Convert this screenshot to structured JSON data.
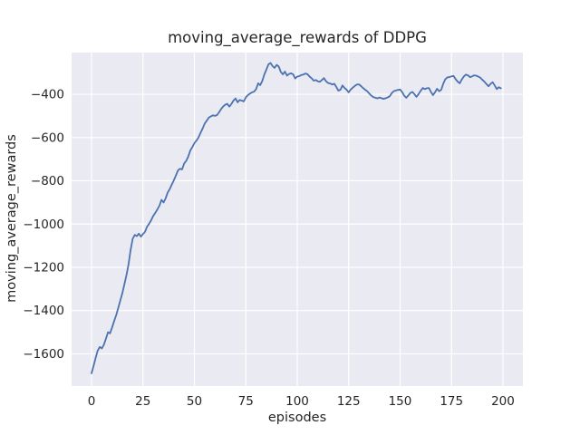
{
  "chart_data": {
    "type": "line",
    "title": "moving_average_rewards of DDPG",
    "xlabel": "episodes",
    "ylabel": "moving_average_rewards",
    "x_ticks": [
      0,
      25,
      50,
      75,
      100,
      125,
      150,
      175,
      200
    ],
    "y_ticks": [
      -400,
      -600,
      -800,
      -1000,
      -1200,
      -1400,
      -1600
    ],
    "xlim": [
      -9.7,
      209.7
    ],
    "ylim": [
      -1749,
      -207
    ],
    "grid": true,
    "legend": false,
    "style": "seaborn-darkgrid",
    "colors": {
      "line": "#4c72b0",
      "plot_background": "#eaeaf2",
      "grid": "#ffffff",
      "text": "#262626",
      "figure_background": "#ffffff"
    },
    "series": [
      {
        "name": "moving_average_rewards",
        "points": [
          [
            0,
            -1690
          ],
          [
            1,
            -1655
          ],
          [
            2,
            -1618
          ],
          [
            3,
            -1585
          ],
          [
            4,
            -1568
          ],
          [
            5,
            -1575
          ],
          [
            6,
            -1558
          ],
          [
            7,
            -1530
          ],
          [
            8,
            -1500
          ],
          [
            9,
            -1505
          ],
          [
            10,
            -1478
          ],
          [
            11,
            -1448
          ],
          [
            12,
            -1420
          ],
          [
            13,
            -1388
          ],
          [
            14,
            -1352
          ],
          [
            15,
            -1318
          ],
          [
            16,
            -1278
          ],
          [
            17,
            -1235
          ],
          [
            18,
            -1185
          ],
          [
            19,
            -1120
          ],
          [
            20,
            -1068
          ],
          [
            21,
            -1050
          ],
          [
            22,
            -1056
          ],
          [
            23,
            -1044
          ],
          [
            24,
            -1058
          ],
          [
            25,
            -1046
          ],
          [
            26,
            -1036
          ],
          [
            27,
            -1012
          ],
          [
            28,
            -998
          ],
          [
            29,
            -982
          ],
          [
            30,
            -962
          ],
          [
            31,
            -948
          ],
          [
            32,
            -932
          ],
          [
            33,
            -915
          ],
          [
            34,
            -888
          ],
          [
            35,
            -900
          ],
          [
            36,
            -882
          ],
          [
            37,
            -855
          ],
          [
            38,
            -838
          ],
          [
            39,
            -818
          ],
          [
            40,
            -798
          ],
          [
            41,
            -775
          ],
          [
            42,
            -752
          ],
          [
            43,
            -744
          ],
          [
            44,
            -747
          ],
          [
            45,
            -720
          ],
          [
            46,
            -708
          ],
          [
            47,
            -688
          ],
          [
            48,
            -660
          ],
          [
            49,
            -644
          ],
          [
            50,
            -626
          ],
          [
            51,
            -614
          ],
          [
            52,
            -600
          ],
          [
            53,
            -578
          ],
          [
            54,
            -558
          ],
          [
            55,
            -535
          ],
          [
            56,
            -522
          ],
          [
            57,
            -508
          ],
          [
            58,
            -502
          ],
          [
            59,
            -497
          ],
          [
            60,
            -500
          ],
          [
            61,
            -496
          ],
          [
            62,
            -483
          ],
          [
            63,
            -468
          ],
          [
            64,
            -456
          ],
          [
            65,
            -448
          ],
          [
            66,
            -444
          ],
          [
            67,
            -457
          ],
          [
            68,
            -444
          ],
          [
            69,
            -429
          ],
          [
            70,
            -419
          ],
          [
            71,
            -437
          ],
          [
            72,
            -426
          ],
          [
            73,
            -429
          ],
          [
            74,
            -433
          ],
          [
            75,
            -414
          ],
          [
            76,
            -404
          ],
          [
            77,
            -397
          ],
          [
            78,
            -391
          ],
          [
            79,
            -388
          ],
          [
            80,
            -376
          ],
          [
            81,
            -349
          ],
          [
            82,
            -358
          ],
          [
            83,
            -338
          ],
          [
            84,
            -308
          ],
          [
            85,
            -285
          ],
          [
            86,
            -262
          ],
          [
            87,
            -255
          ],
          [
            88,
            -270
          ],
          [
            89,
            -278
          ],
          [
            90,
            -264
          ],
          [
            91,
            -272
          ],
          [
            92,
            -296
          ],
          [
            93,
            -308
          ],
          [
            94,
            -295
          ],
          [
            95,
            -314
          ],
          [
            96,
            -306
          ],
          [
            97,
            -303
          ],
          [
            98,
            -308
          ],
          [
            99,
            -327
          ],
          [
            100,
            -318
          ],
          [
            101,
            -316
          ],
          [
            102,
            -311
          ],
          [
            103,
            -309
          ],
          [
            104,
            -304
          ],
          [
            105,
            -307
          ],
          [
            106,
            -318
          ],
          [
            107,
            -326
          ],
          [
            108,
            -337
          ],
          [
            109,
            -334
          ],
          [
            110,
            -340
          ],
          [
            111,
            -342
          ],
          [
            112,
            -334
          ],
          [
            113,
            -325
          ],
          [
            114,
            -340
          ],
          [
            115,
            -348
          ],
          [
            116,
            -350
          ],
          [
            117,
            -355
          ],
          [
            118,
            -351
          ],
          [
            119,
            -366
          ],
          [
            120,
            -383
          ],
          [
            121,
            -379
          ],
          [
            122,
            -359
          ],
          [
            123,
            -371
          ],
          [
            124,
            -379
          ],
          [
            125,
            -391
          ],
          [
            126,
            -378
          ],
          [
            127,
            -369
          ],
          [
            128,
            -361
          ],
          [
            129,
            -355
          ],
          [
            130,
            -354
          ],
          [
            131,
            -362
          ],
          [
            132,
            -371
          ],
          [
            133,
            -379
          ],
          [
            134,
            -386
          ],
          [
            135,
            -396
          ],
          [
            136,
            -406
          ],
          [
            137,
            -413
          ],
          [
            138,
            -416
          ],
          [
            139,
            -419
          ],
          [
            140,
            -415
          ],
          [
            141,
            -418
          ],
          [
            142,
            -421
          ],
          [
            143,
            -418
          ],
          [
            144,
            -414
          ],
          [
            145,
            -409
          ],
          [
            146,
            -394
          ],
          [
            147,
            -385
          ],
          [
            148,
            -382
          ],
          [
            149,
            -380
          ],
          [
            150,
            -378
          ],
          [
            151,
            -390
          ],
          [
            152,
            -406
          ],
          [
            153,
            -416
          ],
          [
            154,
            -405
          ],
          [
            155,
            -394
          ],
          [
            156,
            -389
          ],
          [
            157,
            -400
          ],
          [
            158,
            -412
          ],
          [
            159,
            -399
          ],
          [
            160,
            -384
          ],
          [
            161,
            -371
          ],
          [
            162,
            -376
          ],
          [
            163,
            -372
          ],
          [
            164,
            -371
          ],
          [
            165,
            -389
          ],
          [
            166,
            -404
          ],
          [
            167,
            -390
          ],
          [
            168,
            -374
          ],
          [
            169,
            -386
          ],
          [
            170,
            -379
          ],
          [
            171,
            -350
          ],
          [
            172,
            -330
          ],
          [
            173,
            -322
          ],
          [
            174,
            -320
          ],
          [
            175,
            -317
          ],
          [
            176,
            -315
          ],
          [
            177,
            -330
          ],
          [
            178,
            -341
          ],
          [
            179,
            -349
          ],
          [
            180,
            -331
          ],
          [
            181,
            -317
          ],
          [
            182,
            -309
          ],
          [
            183,
            -312
          ],
          [
            184,
            -321
          ],
          [
            185,
            -317
          ],
          [
            186,
            -312
          ],
          [
            187,
            -314
          ],
          [
            188,
            -318
          ],
          [
            189,
            -323
          ],
          [
            190,
            -333
          ],
          [
            191,
            -342
          ],
          [
            192,
            -353
          ],
          [
            193,
            -363
          ],
          [
            194,
            -351
          ],
          [
            195,
            -344
          ],
          [
            196,
            -359
          ],
          [
            197,
            -376
          ],
          [
            198,
            -367
          ],
          [
            199,
            -372
          ]
        ]
      }
    ]
  }
}
